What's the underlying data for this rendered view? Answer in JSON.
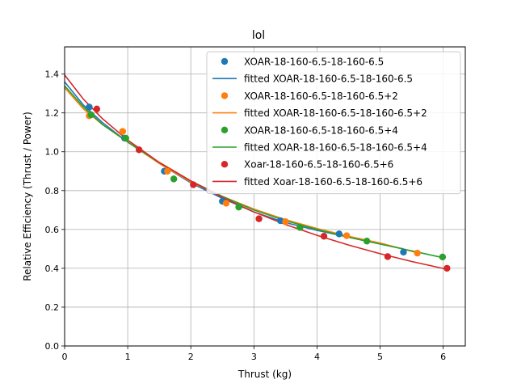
{
  "chart_data": {
    "type": "scatter",
    "title": "lol",
    "xlabel": "Thrust (kg)",
    "ylabel": "Relative Efficiency (Thrust / Power)",
    "xlim": [
      0,
      6.35
    ],
    "ylim": [
      0,
      1.54
    ],
    "xticks": [
      0,
      1,
      2,
      3,
      4,
      5,
      6
    ],
    "yticks": [
      0.0,
      0.2,
      0.4,
      0.6,
      0.8,
      1.0,
      1.2,
      1.4
    ],
    "grid": true,
    "legend_position": "top-right",
    "series": [
      {
        "name": "XOAR-18-160-6.5-18-160-6.5",
        "fit_name": "fitted XOAR-18-160-6.5-18-160-6.5",
        "color": "#1f77b4",
        "x": [
          0.39,
          0.95,
          1.58,
          2.5,
          3.42,
          4.35,
          5.37
        ],
        "y": [
          1.23,
          1.07,
          0.9,
          0.745,
          0.645,
          0.577,
          0.483
        ],
        "fit_x": [
          0,
          0.3,
          0.6,
          1.0,
          1.5,
          2.0,
          2.5,
          3.0,
          3.5,
          4.0,
          4.5,
          5.0,
          5.37
        ],
        "fit_y": [
          1.36,
          1.24,
          1.15,
          1.05,
          0.94,
          0.84,
          0.76,
          0.69,
          0.635,
          0.595,
          0.56,
          0.525,
          0.5
        ]
      },
      {
        "name": "XOAR-18-160-6.5-18-160-6.5+2",
        "fit_name": "fitted XOAR-18-160-6.5-18-160-6.5+2",
        "color": "#ff7f0e",
        "x": [
          0.39,
          0.92,
          1.63,
          2.56,
          3.5,
          4.47,
          5.59
        ],
        "y": [
          1.185,
          1.105,
          0.9,
          0.735,
          0.64,
          0.568,
          0.478
        ],
        "fit_x": [
          0,
          0.3,
          0.6,
          1.0,
          1.5,
          2.0,
          2.5,
          3.0,
          3.5,
          4.0,
          4.5,
          5.0,
          5.59
        ],
        "fit_y": [
          1.33,
          1.22,
          1.14,
          1.05,
          0.94,
          0.845,
          0.77,
          0.705,
          0.65,
          0.605,
          0.565,
          0.53,
          0.48
        ]
      },
      {
        "name": "XOAR-18-160-6.5-18-160-6.5+4",
        "fit_name": "fitted XOAR-18-160-6.5-18-160-6.5+4",
        "color": "#2ca02c",
        "x": [
          0.42,
          0.97,
          1.73,
          2.76,
          3.73,
          4.79,
          5.99
        ],
        "y": [
          1.19,
          1.07,
          0.86,
          0.715,
          0.61,
          0.54,
          0.458
        ],
        "fit_x": [
          0,
          0.3,
          0.6,
          1.0,
          1.5,
          2.0,
          2.5,
          3.0,
          3.5,
          4.0,
          4.5,
          5.0,
          5.5,
          5.99
        ],
        "fit_y": [
          1.34,
          1.23,
          1.14,
          1.05,
          0.945,
          0.85,
          0.77,
          0.7,
          0.645,
          0.6,
          0.56,
          0.525,
          0.49,
          0.455
        ]
      },
      {
        "name": "Xoar-18-160-6.5-18-160-6.5+6",
        "fit_name": "fitted Xoar-18-160-6.5-18-160-6.5+6",
        "color": "#d62728",
        "x": [
          0.51,
          1.18,
          2.04,
          3.08,
          4.11,
          5.12,
          6.06
        ],
        "y": [
          1.22,
          1.01,
          0.83,
          0.655,
          0.565,
          0.46,
          0.4
        ],
        "fit_x": [
          0,
          0.3,
          0.6,
          1.0,
          1.5,
          2.0,
          2.5,
          3.0,
          3.5,
          4.0,
          4.5,
          5.0,
          5.5,
          6.06
        ],
        "fit_y": [
          1.395,
          1.27,
          1.17,
          1.06,
          0.945,
          0.85,
          0.765,
          0.69,
          0.625,
          0.57,
          0.52,
          0.475,
          0.435,
          0.395
        ]
      }
    ]
  }
}
